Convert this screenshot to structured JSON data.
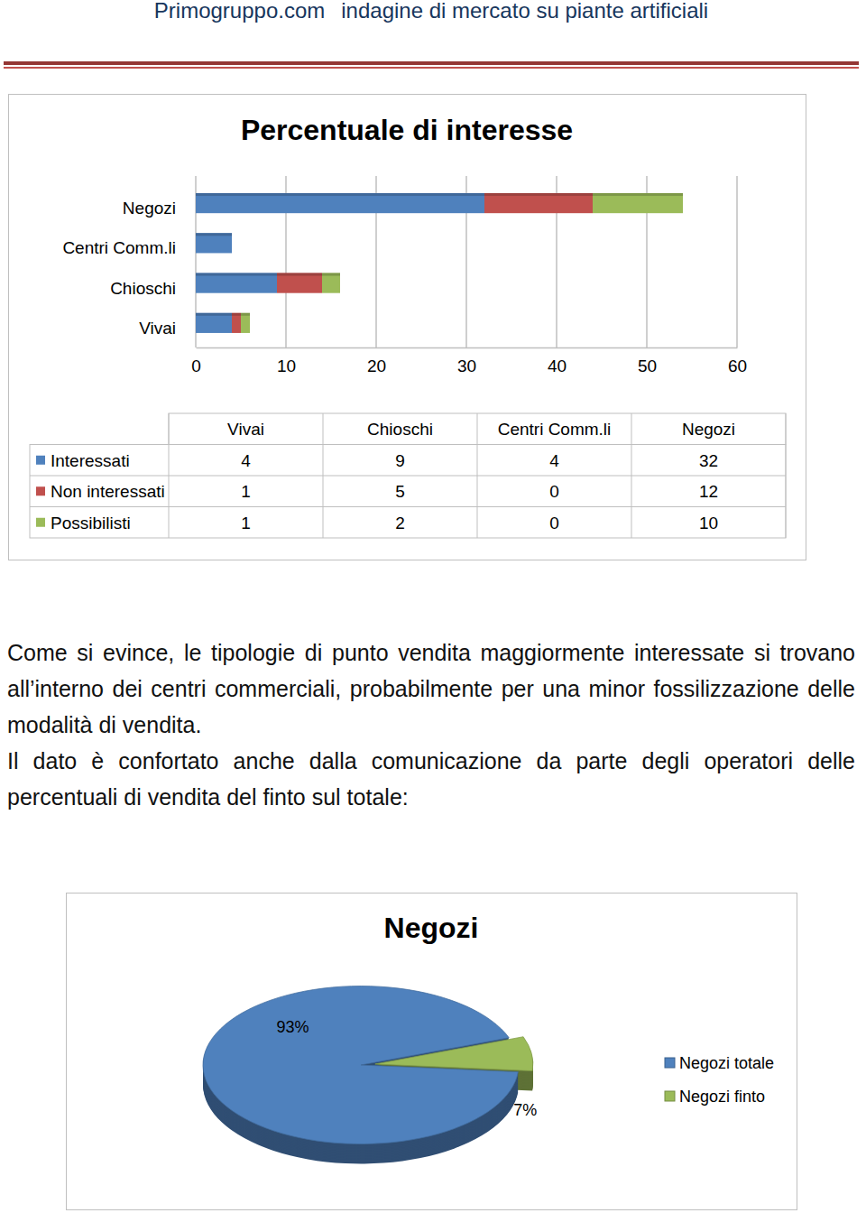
{
  "header": {
    "site": "Primogruppo.com",
    "title": "indagine di mercato su piante artificiali"
  },
  "chart_data": [
    {
      "type": "bar",
      "title": "Percentuale di interesse",
      "orientation": "horizontal",
      "stacked": true,
      "grid": true,
      "categories": [
        "Vivai",
        "Chioschi",
        "Centri Comm.li",
        "Negozi"
      ],
      "series": [
        {
          "name": "Interessati",
          "color": "#4f81bd",
          "values": [
            4,
            9,
            4,
            32
          ]
        },
        {
          "name": "Non interessati",
          "color": "#c0504d",
          "values": [
            1,
            5,
            0,
            12
          ]
        },
        {
          "name": "Possibilisti",
          "color": "#9bbb59",
          "values": [
            1,
            2,
            0,
            10
          ]
        }
      ],
      "xlim": [
        0,
        60
      ],
      "xticks": [
        0,
        10,
        20,
        30,
        40,
        50,
        60
      ]
    },
    {
      "type": "pie",
      "title": "Negozi",
      "legend": "right",
      "categories": [
        "Negozi totale",
        "Negozi finto"
      ],
      "values": [
        93,
        7
      ],
      "value_labels": [
        "93%",
        "7%"
      ],
      "colors": [
        "#4f81bd",
        "#9bbb59"
      ]
    }
  ],
  "paragraphs": [
    "Come si evince, le tipologie di punto vendita maggiormente interessate si trovano all’interno dei centri commerciali, probabilmente per una minor fossilizzazione delle modalità di vendita.",
    "Il dato è confortato anche dalla comunicazione da parte degli operatori delle percentuali di vendita del finto sul totale:"
  ]
}
